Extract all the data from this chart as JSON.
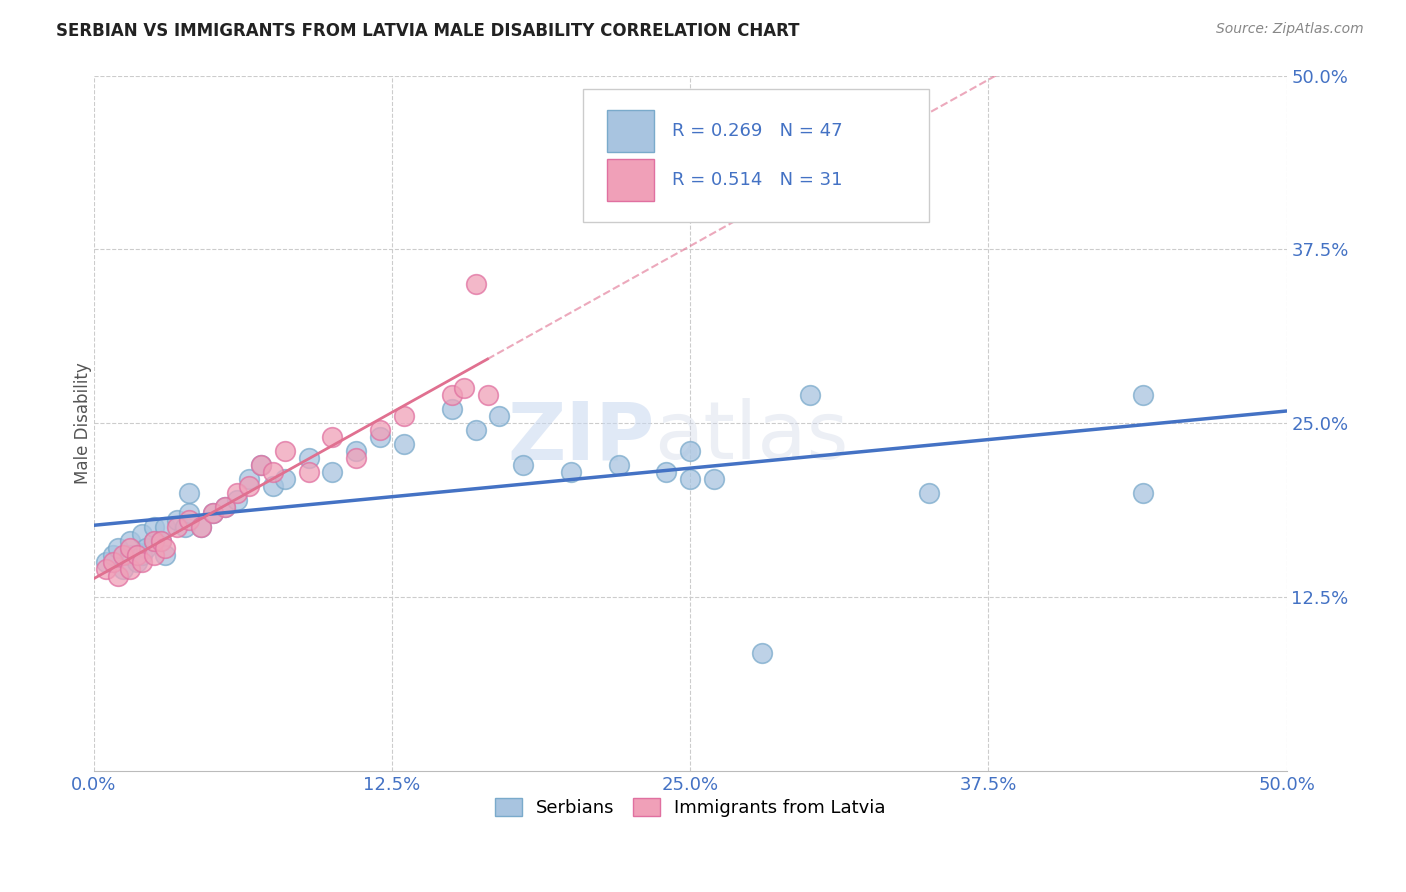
{
  "title": "SERBIAN VS IMMIGRANTS FROM LATVIA MALE DISABILITY CORRELATION CHART",
  "source": "Source: ZipAtlas.com",
  "ylabel": "Male Disability",
  "xlim": [
    0.0,
    0.5
  ],
  "ylim": [
    0.0,
    0.5
  ],
  "xtick_values": [
    0.0,
    0.125,
    0.25,
    0.375,
    0.5
  ],
  "ytick_values": [
    0.125,
    0.25,
    0.375,
    0.5
  ],
  "grid_color": "#cccccc",
  "serbian_color": "#a8c4e0",
  "serbian_edge_color": "#7aaacb",
  "latvian_color": "#f0a0b8",
  "latvian_edge_color": "#e070a0",
  "serbian_line_color": "#4472c4",
  "latvian_line_color": "#e07090",
  "R_serbian": 0.269,
  "N_serbian": 47,
  "R_latvian": 0.514,
  "N_latvian": 31,
  "serbian_x": [
    0.005,
    0.008,
    0.01,
    0.012,
    0.015,
    0.015,
    0.018,
    0.02,
    0.02,
    0.022,
    0.025,
    0.025,
    0.028,
    0.03,
    0.03,
    0.035,
    0.038,
    0.04,
    0.04,
    0.045,
    0.05,
    0.055,
    0.06,
    0.065,
    0.07,
    0.075,
    0.08,
    0.09,
    0.1,
    0.11,
    0.12,
    0.13,
    0.15,
    0.16,
    0.17,
    0.18,
    0.2,
    0.22,
    0.24,
    0.25,
    0.25,
    0.26,
    0.28,
    0.3,
    0.35,
    0.44,
    0.44
  ],
  "serbian_y": [
    0.15,
    0.155,
    0.16,
    0.145,
    0.155,
    0.165,
    0.15,
    0.155,
    0.17,
    0.16,
    0.165,
    0.175,
    0.165,
    0.155,
    0.175,
    0.18,
    0.175,
    0.185,
    0.2,
    0.175,
    0.185,
    0.19,
    0.195,
    0.21,
    0.22,
    0.205,
    0.21,
    0.225,
    0.215,
    0.23,
    0.24,
    0.235,
    0.26,
    0.245,
    0.255,
    0.22,
    0.215,
    0.22,
    0.215,
    0.23,
    0.21,
    0.21,
    0.085,
    0.27,
    0.2,
    0.2,
    0.27
  ],
  "latvian_x": [
    0.005,
    0.008,
    0.01,
    0.012,
    0.015,
    0.015,
    0.018,
    0.02,
    0.025,
    0.025,
    0.028,
    0.03,
    0.035,
    0.04,
    0.045,
    0.05,
    0.055,
    0.06,
    0.065,
    0.07,
    0.075,
    0.08,
    0.09,
    0.1,
    0.11,
    0.12,
    0.13,
    0.15,
    0.155,
    0.16,
    0.165
  ],
  "latvian_y": [
    0.145,
    0.15,
    0.14,
    0.155,
    0.145,
    0.16,
    0.155,
    0.15,
    0.155,
    0.165,
    0.165,
    0.16,
    0.175,
    0.18,
    0.175,
    0.185,
    0.19,
    0.2,
    0.205,
    0.22,
    0.215,
    0.23,
    0.215,
    0.24,
    0.225,
    0.245,
    0.255,
    0.27,
    0.275,
    0.35,
    0.27
  ],
  "legend_serbian_label": "Serbians",
  "legend_latvian_label": "Immigrants from Latvia",
  "watermark_zip": "ZIP",
  "watermark_atlas": "atlas"
}
